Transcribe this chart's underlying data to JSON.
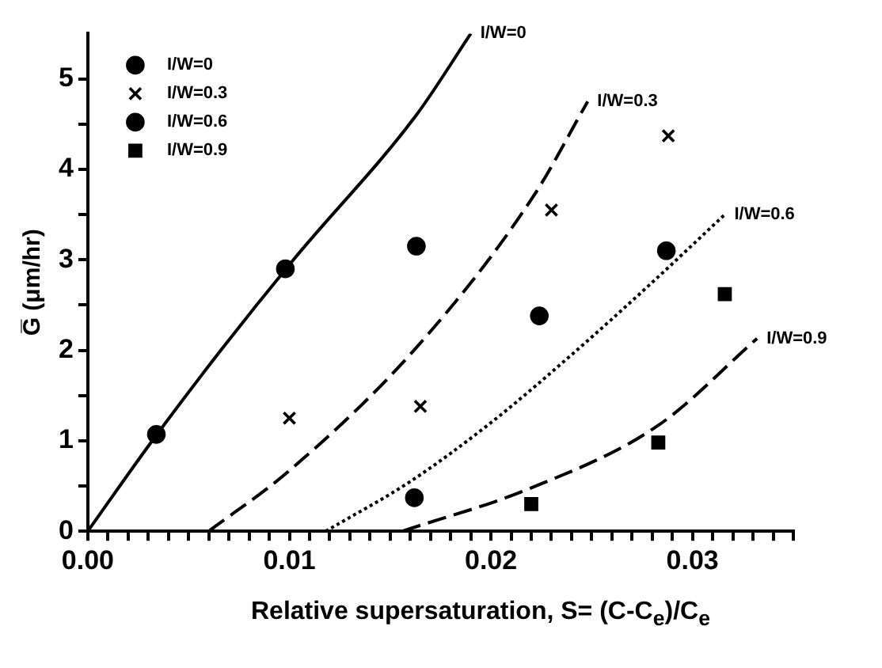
{
  "chart_data": {
    "type": "scatter",
    "xlabel": "Relative supersaturation, S= (C-C$_{e}$)/C$_{e}$",
    "ylabel": "G̅ (μm/hr)",
    "xlim": [
      0,
      0.035
    ],
    "ylim": [
      0,
      5.5
    ],
    "xticks": [
      {
        "value": 0,
        "label": "0.00"
      },
      {
        "value": 0.001,
        "label": null
      },
      {
        "value": 0.002,
        "label": null
      },
      {
        "value": 0.003,
        "label": null
      },
      {
        "value": 0.004,
        "label": null
      },
      {
        "value": 0.005,
        "label": null
      },
      {
        "value": 0.006,
        "label": null
      },
      {
        "value": 0.007,
        "label": null
      },
      {
        "value": 0.008,
        "label": null
      },
      {
        "value": 0.009,
        "label": null
      },
      {
        "value": 0.01,
        "label": "0.01"
      },
      {
        "value": 0.011,
        "label": null
      },
      {
        "value": 0.012,
        "label": null
      },
      {
        "value": 0.013,
        "label": null
      },
      {
        "value": 0.014,
        "label": null
      },
      {
        "value": 0.015,
        "label": null
      },
      {
        "value": 0.016,
        "label": null
      },
      {
        "value": 0.017,
        "label": null
      },
      {
        "value": 0.018,
        "label": null
      },
      {
        "value": 0.019,
        "label": null
      },
      {
        "value": 0.02,
        "label": "0.02"
      },
      {
        "value": 0.021,
        "label": null
      },
      {
        "value": 0.022,
        "label": null
      },
      {
        "value": 0.023,
        "label": null
      },
      {
        "value": 0.024,
        "label": null
      },
      {
        "value": 0.025,
        "label": null
      },
      {
        "value": 0.026,
        "label": null
      },
      {
        "value": 0.027,
        "label": null
      },
      {
        "value": 0.028,
        "label": null
      },
      {
        "value": 0.029,
        "label": null
      },
      {
        "value": 0.03,
        "label": "0.03"
      },
      {
        "value": 0.031,
        "label": null
      },
      {
        "value": 0.032,
        "label": null
      },
      {
        "value": 0.033,
        "label": null
      },
      {
        "value": 0.034,
        "label": null
      },
      {
        "value": 0.035,
        "label": null
      }
    ],
    "yticks": [
      0,
      {
        "value": 0.5,
        "label": null
      },
      1,
      {
        "value": 1.5,
        "label": null
      },
      2,
      {
        "value": 2.5,
        "label": null
      },
      3,
      {
        "value": 3.5,
        "label": null
      },
      4,
      {
        "value": 4.5,
        "label": null
      },
      5
    ],
    "grid": false,
    "legend": "top left",
    "series": [
      {
        "name": "I/W=0",
        "color": "#000000",
        "marker": "circle",
        "x": [
          0.0034,
          0.0098,
          0.0163
        ],
        "values": [
          1.07,
          2.9,
          3.15
        ]
      },
      {
        "name": "I/W=0.3",
        "color": "#000000",
        "marker": "cross",
        "x": [
          0.01,
          0.0165,
          0.023,
          0.0288
        ],
        "values": [
          1.25,
          1.38,
          3.55,
          4.37
        ]
      },
      {
        "name": "I/W=0.6",
        "color": "#000000",
        "marker": "circle",
        "x": [
          0.0162,
          0.0224,
          0.0287
        ],
        "values": [
          0.37,
          2.38,
          3.1
        ]
      },
      {
        "name": "I/W=0.9",
        "color": "#000000",
        "marker": "square",
        "x": [
          0.022,
          0.0283,
          0.0316
        ],
        "values": [
          0.3,
          0.98,
          2.62
        ]
      },
      {
        "name": "I/W=0",
        "type": "line",
        "color": "#000000",
        "line_style": "solid",
        "marker": "none",
        "x": [
          0,
          0.0031,
          0.0066,
          0.0102,
          0.0163,
          0.019
        ],
        "values": [
          0,
          0.97,
          2.0,
          3.0,
          4.6,
          5.5
        ]
      },
      {
        "name": "I/W=0.3",
        "type": "line",
        "color": "#000000",
        "line_style": "dashed",
        "marker": "none",
        "x": [
          0.006,
          0.01,
          0.0163,
          0.0221,
          0.0248
        ],
        "values": [
          0,
          0.67,
          2.03,
          3.7,
          4.75
        ]
      },
      {
        "name": "I/W=0.6",
        "type": "line",
        "color": "#000000",
        "line_style": "dotted",
        "marker": "none",
        "x": [
          0.0118,
          0.016,
          0.02,
          0.024,
          0.028,
          0.0316
        ],
        "values": [
          0,
          0.55,
          1.2,
          1.95,
          2.75,
          3.5
        ]
      },
      {
        "name": "I/W=0.9",
        "type": "line",
        "color": "#000000",
        "line_style": "dashed",
        "marker": "none",
        "x": [
          0.0156,
          0.0219,
          0.0283,
          0.0332
        ],
        "values": [
          0,
          0.47,
          1.17,
          2.13
        ]
      }
    ]
  }
}
